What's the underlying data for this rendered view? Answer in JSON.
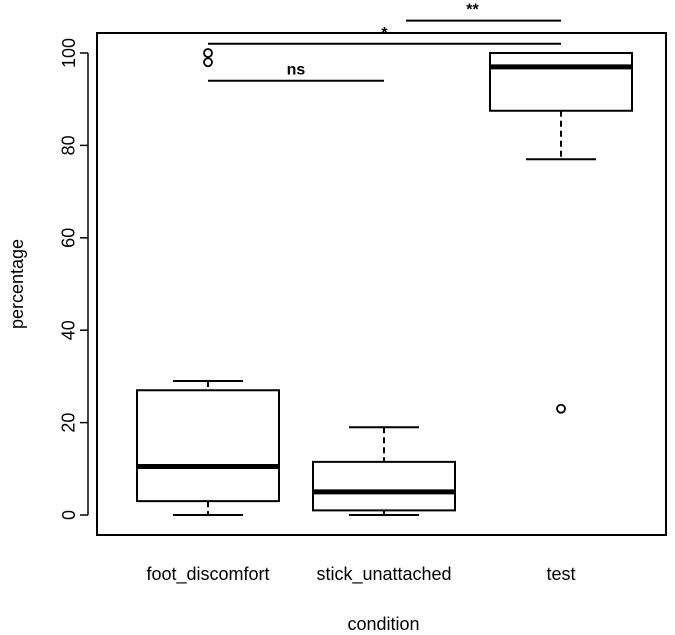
{
  "chart_data": {
    "type": "boxplot",
    "xlabel": "condition",
    "ylabel": "percentage",
    "ylim": [
      -4,
      104
    ],
    "yticks": [
      0,
      20,
      40,
      60,
      80,
      100
    ],
    "categories": [
      "foot_discomfort",
      "stick_unattached",
      "test"
    ],
    "boxes": [
      {
        "category": "foot_discomfort",
        "whisker_low": 0,
        "q1": 3,
        "median": 10.5,
        "q3": 27,
        "whisker_high": 29,
        "outliers": [
          98,
          100
        ]
      },
      {
        "category": "stick_unattached",
        "whisker_low": 0,
        "q1": 1,
        "median": 5,
        "q3": 11.5,
        "whisker_high": 19,
        "outliers": []
      },
      {
        "category": "test",
        "whisker_low": 77,
        "q1": 87.5,
        "median": 97,
        "q3": 100,
        "whisker_high": 100,
        "outliers": [
          23
        ]
      }
    ],
    "significance": [
      {
        "from": "foot_discomfort",
        "to": "stick_unattached",
        "label": "ns",
        "y": 94
      },
      {
        "from": "foot_discomfort",
        "to": "test",
        "label": "*",
        "y": 102
      },
      {
        "from": "stick_unattached",
        "to": "test",
        "label": "**",
        "y": 107
      }
    ],
    "grid": false
  }
}
